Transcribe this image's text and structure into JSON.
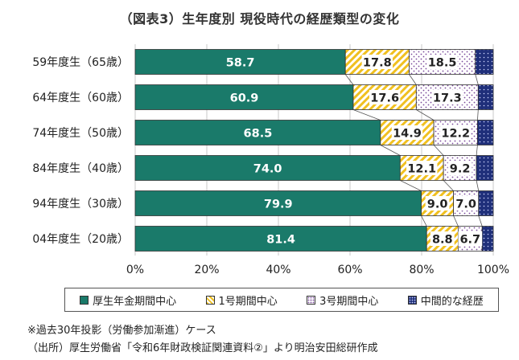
{
  "chart_data": {
    "type": "bar",
    "orientation": "horizontal",
    "stacked": true,
    "title": "（図表3）生年度別 現役時代の経歴類型の変化",
    "categories": [
      "59年度生（65歳）",
      "64年度生（60歳）",
      "74年度生（50歳）",
      "84年度生（40歳）",
      "94年度生（30歳）",
      "04年度生（20歳）"
    ],
    "series": [
      {
        "name": "厚生年金期間中心",
        "color": "#1a7a6a",
        "pattern": "solid",
        "values": [
          58.7,
          60.9,
          68.5,
          74.0,
          79.9,
          81.4
        ],
        "labels": [
          "58.7",
          "60.9",
          "68.5",
          "74.0",
          "79.9",
          "81.4"
        ]
      },
      {
        "name": "1号期間中心",
        "color": "#f0c020",
        "pattern": "diagonal-stripes",
        "values": [
          17.8,
          17.6,
          14.9,
          12.1,
          9.0,
          8.8
        ],
        "labels": [
          "17.8",
          "17.6",
          "14.9",
          "12.1",
          "9.0",
          "8.8"
        ]
      },
      {
        "name": "3号期間中心",
        "color": "#ffffff",
        "pattern": "dots",
        "values": [
          18.5,
          17.3,
          12.2,
          9.2,
          7.0,
          6.7
        ],
        "labels": [
          "18.5",
          "17.3",
          "12.2",
          "9.2",
          "7.0",
          "6.7"
        ]
      },
      {
        "name": "中間的な経歴",
        "color": "#1f2f7a",
        "pattern": "dots-dark",
        "values": [
          5.0,
          4.2,
          4.4,
          4.7,
          4.1,
          3.1
        ],
        "labels": []
      }
    ],
    "xlim": [
      0,
      100
    ],
    "xticks": [
      "0%",
      "20%",
      "40%",
      "60%",
      "80%",
      "100%"
    ],
    "grid": true,
    "legend_position": "bottom"
  },
  "notes": [
    "※過去30年投影（労働参加漸進）ケース",
    "（出所）厚生労働省「令和6年財政検証関連資料②」より明治安田総研作成"
  ]
}
